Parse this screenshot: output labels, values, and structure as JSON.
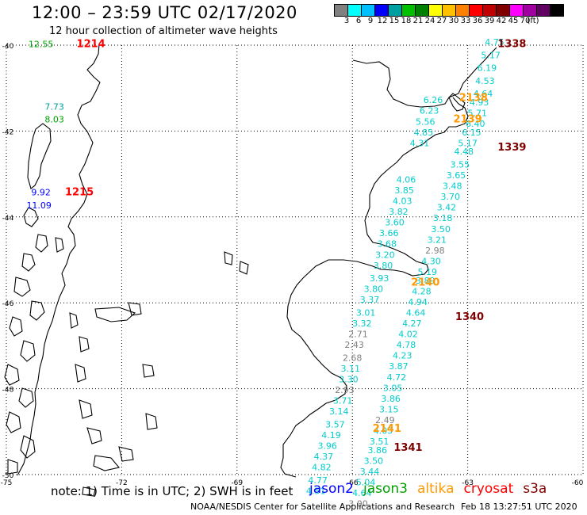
{
  "header": {
    "title": "12:00 – 23:59 UTC 02/17/2020",
    "subtitle": "12 hour collection of altimeter wave heights"
  },
  "colorbar": {
    "colors": [
      "#808080",
      "#00ffff",
      "#00c0ff",
      "#0000ff",
      "#00a0a0",
      "#00c000",
      "#008000",
      "#ffff00",
      "#ffc000",
      "#ff8000",
      "#ff0000",
      "#c00000",
      "#800000",
      "#ff00ff",
      "#a000a0",
      "#600060",
      "#000000"
    ],
    "labels": [
      "3",
      "6",
      "9",
      "12",
      "15",
      "18",
      "21",
      "24",
      "27",
      "30",
      "33",
      "36",
      "39",
      "42",
      "45",
      "70",
      "(ft)"
    ]
  },
  "axes": {
    "lat_labels": [
      "-40",
      "-42",
      "-44",
      "-46",
      "-48",
      "-50"
    ],
    "lon_labels": [
      "-75",
      "-72",
      "-69",
      "-66",
      "-63",
      "-60"
    ]
  },
  "map_data": {
    "lat_range": [
      -50,
      -40
    ],
    "lon_range": [
      -75,
      -60
    ],
    "passes": [
      {
        "id": "1338",
        "color": "#800000",
        "lon": -61.85,
        "lat": -40.05
      },
      {
        "id": "2138",
        "color": "#ff9900",
        "lon": -62.85,
        "lat": -41.3
      },
      {
        "id": "2139",
        "color": "#ff9900",
        "lon": -63.0,
        "lat": -41.8
      },
      {
        "id": "1339",
        "color": "#800000",
        "lon": -61.85,
        "lat": -42.45
      },
      {
        "id": "2140",
        "color": "#ff9900",
        "lon": -64.1,
        "lat": -45.6
      },
      {
        "id": "1340",
        "color": "#800000",
        "lon": -62.95,
        "lat": -46.4
      },
      {
        "id": "2141",
        "color": "#ff9900",
        "lon": -65.1,
        "lat": -49.0
      },
      {
        "id": "1341",
        "color": "#800000",
        "lon": -64.55,
        "lat": -49.45
      },
      {
        "id": "1214",
        "color": "#ff0000",
        "lon": -72.8,
        "lat": -40.05
      },
      {
        "id": "1215",
        "color": "#ff0000",
        "lon": -73.1,
        "lat": -43.5
      }
    ],
    "points": [
      {
        "v": "4.75",
        "c": "#00cccc",
        "lon": -62.3,
        "lat": -40.0
      },
      {
        "v": "5.17",
        "c": "#00cccc",
        "lon": -62.4,
        "lat": -40.3
      },
      {
        "v": "6.19",
        "c": "#00cccc",
        "lon": -62.5,
        "lat": -40.6
      },
      {
        "v": "4.53",
        "c": "#00cccc",
        "lon": -62.55,
        "lat": -40.9
      },
      {
        "v": "4.64",
        "c": "#00cccc",
        "lon": -62.6,
        "lat": -41.2
      },
      {
        "v": "4.93",
        "c": "#00cccc",
        "lon": -62.7,
        "lat": -41.4
      },
      {
        "v": "5.71",
        "c": "#00cccc",
        "lon": -62.75,
        "lat": -41.65
      },
      {
        "v": "6.40",
        "c": "#00cccc",
        "lon": -62.8,
        "lat": -41.9
      },
      {
        "v": "6.15",
        "c": "#00cccc",
        "lon": -62.9,
        "lat": -42.1
      },
      {
        "v": "5.17",
        "c": "#00cccc",
        "lon": -63.0,
        "lat": -42.35
      },
      {
        "v": "4.48",
        "c": "#00cccc",
        "lon": -63.1,
        "lat": -42.55
      },
      {
        "v": "3.55",
        "c": "#00cccc",
        "lon": -63.2,
        "lat": -42.85
      },
      {
        "v": "3.65",
        "c": "#00cccc",
        "lon": -63.3,
        "lat": -43.1
      },
      {
        "v": "3.48",
        "c": "#00cccc",
        "lon": -63.4,
        "lat": -43.35
      },
      {
        "v": "3.70",
        "c": "#00cccc",
        "lon": -63.45,
        "lat": -43.6
      },
      {
        "v": "3.42",
        "c": "#00cccc",
        "lon": -63.55,
        "lat": -43.85
      },
      {
        "v": "3.18",
        "c": "#00cccc",
        "lon": -63.65,
        "lat": -44.1
      },
      {
        "v": "3.50",
        "c": "#00cccc",
        "lon": -63.7,
        "lat": -44.35
      },
      {
        "v": "3.21",
        "c": "#00cccc",
        "lon": -63.8,
        "lat": -44.6
      },
      {
        "v": "2.98",
        "c": "#808080",
        "lon": -63.85,
        "lat": -44.85
      },
      {
        "v": "4.30",
        "c": "#00cccc",
        "lon": -63.95,
        "lat": -45.1
      },
      {
        "v": "5.19",
        "c": "#00cccc",
        "lon": -64.05,
        "lat": -45.35
      },
      {
        "v": "3.89",
        "c": "#00cccc",
        "lon": -64.1,
        "lat": -45.55
      },
      {
        "v": "4.28",
        "c": "#00cccc",
        "lon": -64.2,
        "lat": -45.8
      },
      {
        "v": "4.94",
        "c": "#00cccc",
        "lon": -64.3,
        "lat": -46.05
      },
      {
        "v": "4.64",
        "c": "#00cccc",
        "lon": -64.35,
        "lat": -46.3
      },
      {
        "v": "4.27",
        "c": "#00cccc",
        "lon": -64.45,
        "lat": -46.55
      },
      {
        "v": "4.02",
        "c": "#00cccc",
        "lon": -64.55,
        "lat": -46.8
      },
      {
        "v": "4.78",
        "c": "#00cccc",
        "lon": -64.6,
        "lat": -47.05
      },
      {
        "v": "4.23",
        "c": "#00cccc",
        "lon": -64.7,
        "lat": -47.3
      },
      {
        "v": "3.87",
        "c": "#00cccc",
        "lon": -64.8,
        "lat": -47.55
      },
      {
        "v": "4.72",
        "c": "#00cccc",
        "lon": -64.85,
        "lat": -47.8
      },
      {
        "v": "3.05",
        "c": "#00cccc",
        "lon": -64.95,
        "lat": -48.05
      },
      {
        "v": "3.86",
        "c": "#00cccc",
        "lon": -65.0,
        "lat": -48.3
      },
      {
        "v": "3.15",
        "c": "#00cccc",
        "lon": -65.05,
        "lat": -48.55
      },
      {
        "v": "2.49",
        "c": "#808080",
        "lon": -65.15,
        "lat": -48.8
      },
      {
        "v": "4.05",
        "c": "#00cccc",
        "lon": -65.2,
        "lat": -49.05
      },
      {
        "v": "3.51",
        "c": "#00cccc",
        "lon": -65.3,
        "lat": -49.3
      },
      {
        "v": "3.86",
        "c": "#00cccc",
        "lon": -65.35,
        "lat": -49.5
      },
      {
        "v": "3.50",
        "c": "#00cccc",
        "lon": -65.45,
        "lat": -49.75
      },
      {
        "v": "3.44",
        "c": "#00cccc",
        "lon": -65.55,
        "lat": -50.0
      },
      {
        "v": "5.04",
        "c": "#00cccc",
        "lon": -65.65,
        "lat": -50.25
      },
      {
        "v": "4.64",
        "c": "#00cccc",
        "lon": -65.75,
        "lat": -50.5
      },
      {
        "v": "3.00",
        "c": "#808080",
        "lon": -65.85,
        "lat": -50.75
      },
      {
        "v": "6.26",
        "c": "#00cccc",
        "lon": -63.9,
        "lat": -41.35
      },
      {
        "v": "6.23",
        "c": "#00cccc",
        "lon": -64.0,
        "lat": -41.6
      },
      {
        "v": "5.56",
        "c": "#00cccc",
        "lon": -64.1,
        "lat": -41.85
      },
      {
        "v": "4.85",
        "c": "#00cccc",
        "lon": -64.15,
        "lat": -42.1
      },
      {
        "v": "4.31",
        "c": "#00cccc",
        "lon": -64.25,
        "lat": -42.35
      },
      {
        "v": "4.06",
        "c": "#00cccc",
        "lon": -64.6,
        "lat": -43.2
      },
      {
        "v": "3.85",
        "c": "#00cccc",
        "lon": -64.65,
        "lat": -43.45
      },
      {
        "v": "4.03",
        "c": "#00cccc",
        "lon": -64.7,
        "lat": -43.7
      },
      {
        "v": "3.82",
        "c": "#00cccc",
        "lon": -64.8,
        "lat": -43.95
      },
      {
        "v": "3.60",
        "c": "#00cccc",
        "lon": -64.9,
        "lat": -44.2
      },
      {
        "v": "3.66",
        "c": "#00cccc",
        "lon": -65.05,
        "lat": -44.45
      },
      {
        "v": "3.68",
        "c": "#00cccc",
        "lon": -65.1,
        "lat": -44.7
      },
      {
        "v": "3.20",
        "c": "#00cccc",
        "lon": -65.15,
        "lat": -44.95
      },
      {
        "v": "3.80",
        "c": "#00cccc",
        "lon": -65.2,
        "lat": -45.2
      },
      {
        "v": "3.93",
        "c": "#00cccc",
        "lon": -65.3,
        "lat": -45.5
      },
      {
        "v": "3.80",
        "c": "#00cccc",
        "lon": -65.45,
        "lat": -45.75
      },
      {
        "v": "3.37",
        "c": "#00cccc",
        "lon": -65.55,
        "lat": -46.0
      },
      {
        "v": "3.01",
        "c": "#00cccc",
        "lon": -65.65,
        "lat": -46.3
      },
      {
        "v": "3.32",
        "c": "#00cccc",
        "lon": -65.75,
        "lat": -46.55
      },
      {
        "v": "2.71",
        "c": "#808080",
        "lon": -65.85,
        "lat": -46.8
      },
      {
        "v": "2.43",
        "c": "#808080",
        "lon": -65.95,
        "lat": -47.05
      },
      {
        "v": "2.68",
        "c": "#808080",
        "lon": -66.0,
        "lat": -47.35
      },
      {
        "v": "3.11",
        "c": "#00cccc",
        "lon": -66.05,
        "lat": -47.6
      },
      {
        "v": "3.30",
        "c": "#00cccc",
        "lon": -66.1,
        "lat": -47.85
      },
      {
        "v": "2.93",
        "c": "#808080",
        "lon": -66.2,
        "lat": -48.1
      },
      {
        "v": "3.71",
        "c": "#00cccc",
        "lon": -66.25,
        "lat": -48.35
      },
      {
        "v": "3.14",
        "c": "#00cccc",
        "lon": -66.35,
        "lat": -48.6
      },
      {
        "v": "3.57",
        "c": "#00cccc",
        "lon": -66.45,
        "lat": -48.9
      },
      {
        "v": "4.19",
        "c": "#00cccc",
        "lon": -66.55,
        "lat": -49.15
      },
      {
        "v": "3.96",
        "c": "#00cccc",
        "lon": -66.65,
        "lat": -49.4
      },
      {
        "v": "4.37",
        "c": "#00cccc",
        "lon": -66.75,
        "lat": -49.65
      },
      {
        "v": "4.82",
        "c": "#00cccc",
        "lon": -66.8,
        "lat": -49.9
      },
      {
        "v": "4.77",
        "c": "#00cccc",
        "lon": -66.9,
        "lat": -50.2
      },
      {
        "v": "4.51",
        "c": "#00cccc",
        "lon": -66.95,
        "lat": -50.45
      },
      {
        "v": "12.55",
        "c": "#00a000",
        "lon": -74.1,
        "lat": -40.05
      },
      {
        "v": "7.73",
        "c": "#00a0a0",
        "lon": -73.75,
        "lat": -41.5
      },
      {
        "v": "8.03",
        "c": "#00a000",
        "lon": -73.75,
        "lat": -41.8
      },
      {
        "v": "9.92",
        "c": "#0000ff",
        "lon": -74.1,
        "lat": -43.5
      },
      {
        "v": "11.09",
        "c": "#0000ff",
        "lon": -74.15,
        "lat": -43.8
      }
    ]
  },
  "footer": {
    "note": "note: 1) Time is in UTC; 2) SWH is in feet",
    "legend": [
      {
        "label": "jason2",
        "color": "#0000ff"
      },
      {
        "label": "jason3",
        "color": "#00a000"
      },
      {
        "label": "altika",
        "color": "#ff9900"
      },
      {
        "label": "cryosat",
        "color": "#ff0000"
      },
      {
        "label": "s3a",
        "color": "#800000"
      }
    ],
    "credit": "NOAA/NESDIS Center for Satellite Applications and Research",
    "timestamp": "Feb 18 13:27:51 UTC 2020"
  }
}
